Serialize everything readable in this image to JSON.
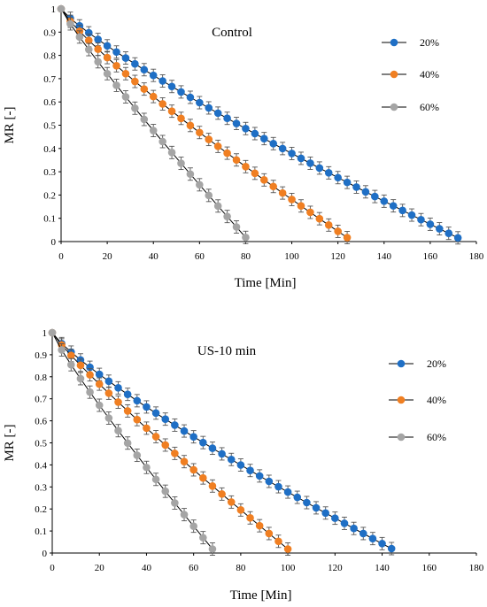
{
  "chart_data": [
    {
      "type": "line",
      "title": "Control",
      "xlabel": "Time [Min]",
      "ylabel": "MR [-]",
      "xlim": [
        0,
        180
      ],
      "ylim": [
        0,
        1
      ],
      "x_ticks": [
        "0",
        "20",
        "40",
        "60",
        "80",
        "100",
        "120",
        "140",
        "160",
        "180"
      ],
      "y_ticks": [
        "0",
        "0.1",
        "0.2",
        "0.3",
        "0.4",
        "0.5",
        "0.6",
        "0.7",
        "0.8",
        "0.9",
        "1"
      ],
      "grid": false,
      "legend_position": "right",
      "error_bars": true,
      "series": [
        {
          "name": "20%",
          "color": "#1f6fc5",
          "x_start": 0,
          "x_step": 4,
          "end_x": 172,
          "end_y": 0.016,
          "shape": 1.18
        },
        {
          "name": "40%",
          "color": "#f07f22",
          "x_start": 0,
          "x_step": 4,
          "end_x": 124,
          "end_y": 0.017,
          "shape": 1.18
        },
        {
          "name": "60%",
          "color": "#a5a5a5",
          "x_start": 0,
          "x_step": 4,
          "end_x": 80,
          "end_y": 0.018,
          "shape": 1.1
        }
      ]
    },
    {
      "type": "line",
      "title": "US-10 min",
      "xlabel": "Time [Min]",
      "ylabel": "MR [-]",
      "xlim": [
        0,
        180
      ],
      "ylim": [
        0,
        1
      ],
      "x_ticks": [
        "0",
        "20",
        "40",
        "60",
        "80",
        "100",
        "120",
        "140",
        "160",
        "180"
      ],
      "y_ticks": [
        "0",
        "0.1",
        "0.2",
        "0.3",
        "0.4",
        "0.5",
        "0.6",
        "0.7",
        "0.8",
        "0.9",
        "1"
      ],
      "grid": false,
      "legend_position": "right",
      "error_bars": true,
      "series": [
        {
          "name": "20%",
          "color": "#1f6fc5",
          "x_start": 0,
          "x_step": 4,
          "end_x": 144,
          "end_y": 0.02,
          "shape": 1.2
        },
        {
          "name": "40%",
          "color": "#f07f22",
          "x_start": 0,
          "x_step": 4,
          "end_x": 100,
          "end_y": 0.018,
          "shape": 1.12
        },
        {
          "name": "60%",
          "color": "#a5a5a5",
          "x_start": 0,
          "x_step": 4,
          "end_x": 68,
          "end_y": 0.018,
          "shape": 1.12
        }
      ]
    }
  ]
}
